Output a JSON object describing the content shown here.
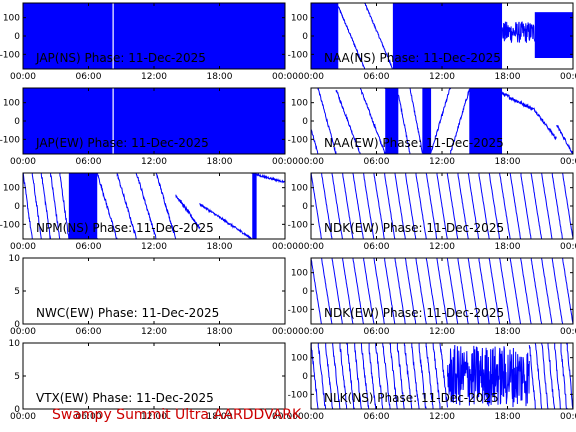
{
  "footer": {
    "station": "Swampy Summit Ultra AARDDVARK"
  },
  "colors": {
    "trace": "#0000ff",
    "footer": "#cc0000",
    "axis": "#000000"
  },
  "chart_data": [
    {
      "type": "line",
      "title": "JAP(NS) Phase: 11-Dec-2025",
      "x_ticks": [
        "00:00",
        "06:00",
        "12:00",
        "18:00",
        "00:00"
      ],
      "y_ticks": [
        "100",
        "0",
        "-100"
      ],
      "ylim": [
        -180,
        180
      ],
      "xlim_hours": [
        0,
        24
      ],
      "trace_style": "saturated",
      "segments": [
        {
          "t0": 0,
          "t1": 24,
          "kind": "band",
          "lo": -180,
          "hi": 180,
          "gaps": [
            8.2
          ]
        }
      ]
    },
    {
      "type": "line",
      "title": "NAA(NS) Phase: 11-Dec-2025",
      "x_ticks": [
        "00:00",
        "06:00",
        "12:00",
        "18:00",
        "00:00"
      ],
      "y_ticks": [
        "100",
        "0",
        "-100"
      ],
      "ylim": [
        -180,
        180
      ],
      "xlim_hours": [
        0,
        24
      ],
      "trace_style": "mixed",
      "segments": [
        {
          "t0": 0,
          "t1": 2.5,
          "kind": "band",
          "lo": -180,
          "hi": 180
        },
        {
          "t0": 2.5,
          "t1": 7.5,
          "kind": "wrap",
          "start": 160,
          "end": -180,
          "noise": 6,
          "wraps": 1
        },
        {
          "t0": 7.5,
          "t1": 17.5,
          "kind": "band",
          "lo": -180,
          "hi": 180
        },
        {
          "t0": 17.5,
          "t1": 20.5,
          "kind": "noise",
          "center": 20,
          "amp": 60
        },
        {
          "t0": 20.5,
          "t1": 24,
          "kind": "band",
          "lo": -120,
          "hi": 130
        }
      ]
    },
    {
      "type": "line",
      "title": "JAP(EW) Phase: 11-Dec-2025",
      "x_ticks": [
        "00:00",
        "06:00",
        "12:00",
        "18:00",
        "00:00"
      ],
      "y_ticks": [
        "100",
        "0",
        "-100"
      ],
      "ylim": [
        -180,
        180
      ],
      "xlim_hours": [
        0,
        24
      ],
      "trace_style": "saturated",
      "segments": [
        {
          "t0": 0,
          "t1": 24,
          "kind": "band",
          "lo": -180,
          "hi": 180,
          "gaps": [
            8.2
          ]
        }
      ]
    },
    {
      "type": "line",
      "title": "NAA(EW) Phase: 11-Dec-2025",
      "x_ticks": [
        "00:00",
        "06:00",
        "12:00",
        "18:00",
        "00:00"
      ],
      "y_ticks": [
        "100",
        "0",
        "-100"
      ],
      "ylim": [
        -180,
        180
      ],
      "xlim_hours": [
        0,
        24
      ],
      "trace_style": "mixed",
      "segments": [
        {
          "t0": 0,
          "t1": 2.3,
          "kind": "wrap",
          "start": -40,
          "end": -180,
          "noise": 8,
          "wraps": 1
        },
        {
          "t0": 2.3,
          "t1": 6.8,
          "kind": "wrap",
          "start": 170,
          "end": -180,
          "noise": 8,
          "wraps": 1
        },
        {
          "t0": 6.8,
          "t1": 8.0,
          "kind": "band",
          "lo": -180,
          "hi": 180
        },
        {
          "t0": 8.0,
          "t1": 10.2,
          "kind": "wrap",
          "start": 150,
          "end": -170,
          "noise": 8,
          "wraps": 1
        },
        {
          "t0": 10.2,
          "t1": 11.0,
          "kind": "band",
          "lo": -180,
          "hi": 180
        },
        {
          "t0": 11.0,
          "t1": 14.5,
          "kind": "wrap",
          "start": -170,
          "end": 170,
          "noise": 10,
          "wraps": 1
        },
        {
          "t0": 14.5,
          "t1": 17.5,
          "kind": "band",
          "lo": -180,
          "hi": 180
        },
        {
          "t0": 17.5,
          "t1": 20.5,
          "kind": "wrap",
          "start": 150,
          "end": 60,
          "noise": 10,
          "wraps": 0
        },
        {
          "t0": 20.5,
          "t1": 22.5,
          "kind": "wrap",
          "start": 60,
          "end": -100,
          "noise": 8,
          "wraps": 0
        },
        {
          "t0": 22.5,
          "t1": 24,
          "kind": "wrap",
          "start": -20,
          "end": -180,
          "noise": 8,
          "wraps": 0
        }
      ]
    },
    {
      "type": "line",
      "title": "NPM(NS) Phase: 11-Dec-2025",
      "x_ticks": [
        "00:00",
        "06:00",
        "12:00",
        "18:00",
        "00:00"
      ],
      "y_ticks": [
        "100",
        "0",
        "-100"
      ],
      "ylim": [
        -180,
        180
      ],
      "xlim_hours": [
        0,
        24
      ],
      "trace_style": "mixed",
      "segments": [
        {
          "t0": 0,
          "t1": 4.2,
          "kind": "wrap",
          "start": 180,
          "end": -180,
          "noise": 14,
          "wraps": 4
        },
        {
          "t0": 4.2,
          "t1": 6.8,
          "kind": "band",
          "lo": -180,
          "hi": 180
        },
        {
          "t0": 6.8,
          "t1": 14.0,
          "kind": "wrap",
          "start": 180,
          "end": -180,
          "noise": 10,
          "wraps": 3
        },
        {
          "t0": 14.0,
          "t1": 16.2,
          "kind": "wrap",
          "start": 60,
          "end": -120,
          "noise": 10,
          "wraps": 0
        },
        {
          "t0": 16.2,
          "t1": 21.0,
          "kind": "wrap",
          "start": 10,
          "end": -180,
          "noise": 6,
          "wraps": 0
        },
        {
          "t0": 21.0,
          "t1": 21.4,
          "kind": "band",
          "lo": -180,
          "hi": 180
        },
        {
          "t0": 21.4,
          "t1": 24,
          "kind": "wrap",
          "start": 170,
          "end": 130,
          "noise": 5,
          "wraps": 0
        }
      ]
    },
    {
      "type": "line",
      "title": "NDK(EW) Phase: 11-Dec-2025",
      "x_ticks": [
        "00:00",
        "06:00",
        "12:00",
        "18:00",
        "00:00"
      ],
      "y_ticks": [
        "100",
        "0",
        "-100"
      ],
      "ylim": [
        -180,
        180
      ],
      "xlim_hours": [
        0,
        24
      ],
      "trace_style": "mixed",
      "segments": [
        {
          "t0": 0,
          "t1": 24,
          "kind": "wrap",
          "start": 180,
          "end": -180,
          "noise": 4,
          "wraps": 24
        }
      ]
    },
    {
      "type": "line",
      "title": "NWC(EW) Phase: 11-Dec-2025",
      "x_ticks": [
        "00:00",
        "06:00",
        "12:00",
        "18:00",
        "00:00"
      ],
      "y_ticks": [
        "10",
        "5",
        "0"
      ],
      "ylim": [
        0,
        10
      ],
      "xlim_hours": [
        0,
        24
      ],
      "trace_style": "empty",
      "segments": []
    },
    {
      "type": "line",
      "title": "NDK(EW) Phase: 11-Dec-2025",
      "x_ticks": [
        "00:00",
        "06:00",
        "12:00",
        "18:00",
        "00:00"
      ],
      "y_ticks": [
        "100",
        "0",
        "-100"
      ],
      "ylim": [
        -180,
        180
      ],
      "xlim_hours": [
        0,
        24
      ],
      "trace_style": "mixed",
      "segments": [
        {
          "t0": 0,
          "t1": 24,
          "kind": "wrap",
          "start": 180,
          "end": -180,
          "noise": 4,
          "wraps": 24
        }
      ]
    },
    {
      "type": "line",
      "title": "VTX(EW) Phase: 11-Dec-2025",
      "x_ticks": [
        "00:00",
        "06:00",
        "12:00",
        "18:00",
        "00:00"
      ],
      "y_ticks": [
        "10",
        "5",
        "0"
      ],
      "ylim": [
        0,
        10
      ],
      "xlim_hours": [
        0,
        24
      ],
      "trace_style": "empty",
      "segments": []
    },
    {
      "type": "line",
      "title": "NLK(NS) Phase: 11-Dec-2025",
      "x_ticks": [
        "00:00",
        "06:00",
        "12:00",
        "18:00",
        "00:00"
      ],
      "y_ticks": [
        "100",
        "0",
        "-100"
      ],
      "ylim": [
        -180,
        180
      ],
      "xlim_hours": [
        0,
        24
      ],
      "trace_style": "mixed",
      "segments": [
        {
          "t0": 0,
          "t1": 12.5,
          "kind": "wrap",
          "start": 180,
          "end": -180,
          "noise": 20,
          "wraps": 18
        },
        {
          "t0": 12.5,
          "t1": 20.0,
          "kind": "noise",
          "center": 0,
          "amp": 170
        },
        {
          "t0": 20.0,
          "t1": 24,
          "kind": "wrap",
          "start": 180,
          "end": -180,
          "noise": 20,
          "wraps": 6
        }
      ]
    }
  ]
}
